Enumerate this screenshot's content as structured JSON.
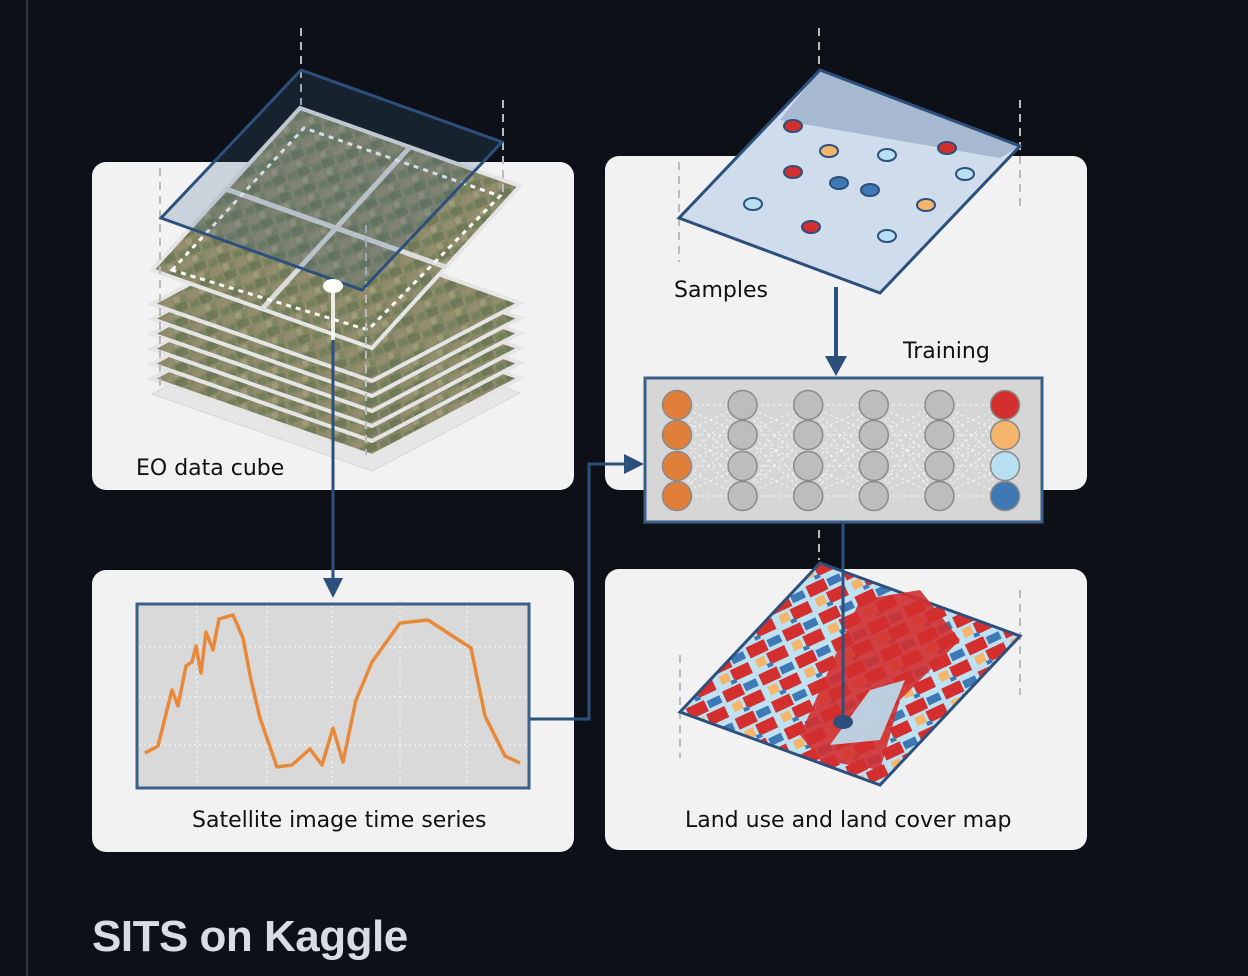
{
  "diagram": {
    "cube_label": "EO data cube",
    "samples_label": "Samples",
    "training_label": "Training",
    "timeseries_label": "Satellite image time series",
    "map_label": "Land use and land cover map"
  },
  "network": {
    "input_nodes": 4,
    "hidden_layers": 4,
    "output_classes": 4
  },
  "colors": {
    "background": "#0d1117",
    "panel": "#f2f2f2",
    "frame": "#3b5e8a",
    "arrow": "#2d4f7c",
    "input_node": "#e07f3a",
    "hidden_node": "#bdbdbd",
    "class_red": "#d32f2f",
    "class_orange": "#f5b56a",
    "class_lightblue": "#b9dff2",
    "class_blue": "#3e78b5",
    "series_line": "#e8893a"
  },
  "section": {
    "heading": "SITS on Kaggle"
  }
}
